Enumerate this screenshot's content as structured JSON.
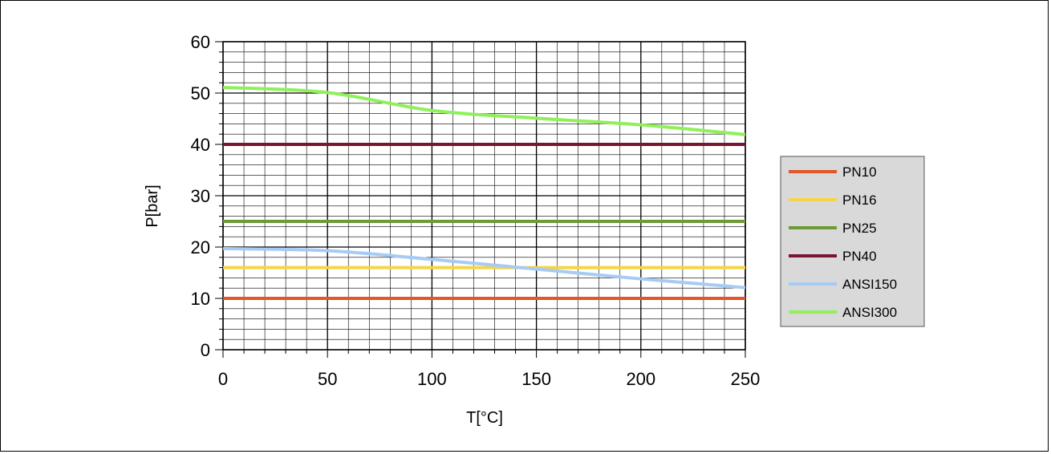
{
  "chart_data": {
    "type": "line",
    "xlabel": "T[°C]",
    "ylabel": "P[bar]",
    "xlim": [
      0,
      250
    ],
    "ylim": [
      0,
      60
    ],
    "x_ticks": [
      0,
      50,
      100,
      150,
      200,
      250
    ],
    "y_ticks": [
      0,
      10,
      20,
      30,
      40,
      50,
      60
    ],
    "grid": true,
    "legend_position": "right",
    "series": [
      {
        "name": "PN10",
        "color": "#e0572a",
        "x": [
          0,
          250
        ],
        "values": [
          10,
          10
        ]
      },
      {
        "name": "PN16",
        "color": "#f5d547",
        "x": [
          0,
          250
        ],
        "values": [
          16,
          16
        ]
      },
      {
        "name": "PN25",
        "color": "#6e9a38",
        "x": [
          0,
          250
        ],
        "values": [
          25,
          25
        ]
      },
      {
        "name": "PN40",
        "color": "#7a1530",
        "x": [
          0,
          250
        ],
        "values": [
          40,
          40
        ]
      },
      {
        "name": "ANSI150",
        "color": "#a7cbf4",
        "x": [
          0,
          50,
          100,
          150,
          200,
          250
        ],
        "values": [
          19.7,
          19.3,
          17.6,
          15.7,
          13.8,
          12.1
        ]
      },
      {
        "name": "ANSI300",
        "color": "#8ff05a",
        "x": [
          0,
          50,
          100,
          150,
          200,
          250
        ],
        "values": [
          51.1,
          50.1,
          46.6,
          45.1,
          43.8,
          41.9
        ]
      }
    ]
  }
}
